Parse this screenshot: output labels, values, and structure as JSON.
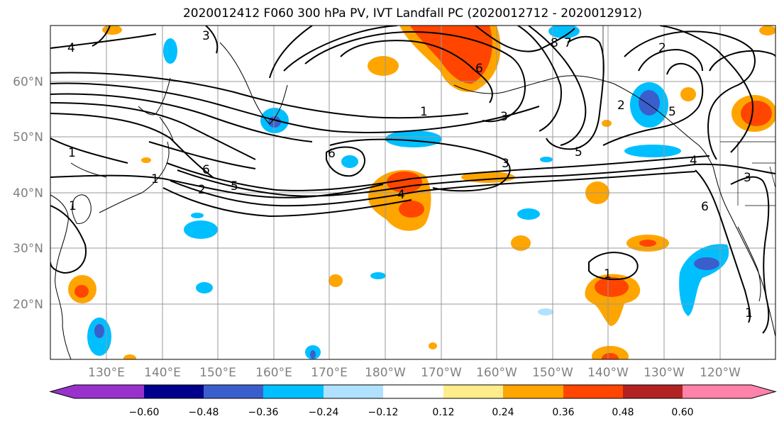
{
  "title": "2020012412 F060 300 hPa PV, IVT Landfall PC (2020012712 - 2020012912)",
  "map": {
    "lat_labels": [
      "60°N",
      "50°N",
      "40°N",
      "30°N",
      "20°N"
    ],
    "lon_labels": [
      "130°E",
      "140°E",
      "150°E",
      "160°E",
      "170°E",
      "180°W",
      "170°W",
      "160°W",
      "150°W",
      "140°W",
      "130°W",
      "120°W"
    ],
    "contour_labels": [
      "4",
      "3",
      "1",
      "1",
      "6",
      "2",
      "5",
      "1",
      "4",
      "1",
      "5",
      "3",
      "8",
      "7",
      "2",
      "2",
      "6",
      "6",
      "3",
      "5",
      "4",
      "3",
      "1",
      "1",
      "6"
    ]
  },
  "colorbar": {
    "tick_labels": [
      "−0.60",
      "−0.48",
      "−0.36",
      "−0.24",
      "−0.12",
      "0.12",
      "0.24",
      "0.36",
      "0.48",
      "0.60"
    ],
    "colors": [
      "#9932cc",
      "#00008b",
      "#3a5fcd",
      "#00bfff",
      "#b0e2ff",
      "#ffffff",
      "#ffec8b",
      "#ffa500",
      "#ff4500",
      "#b22222",
      "#ff82ab"
    ]
  }
}
